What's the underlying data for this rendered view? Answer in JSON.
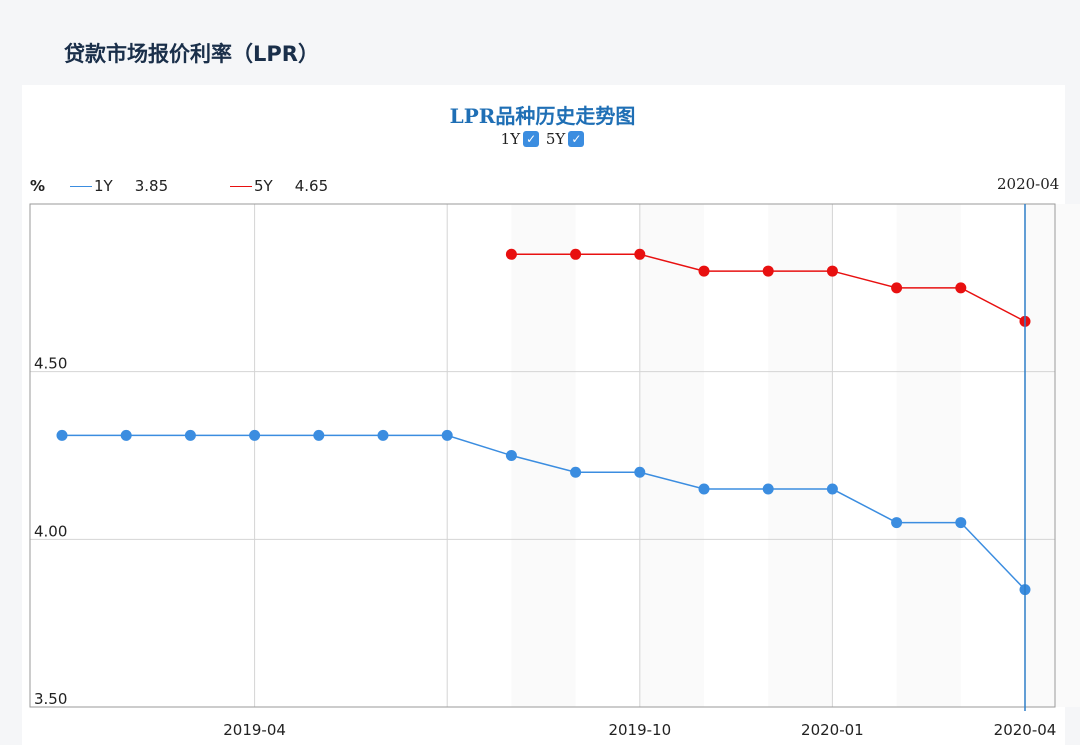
{
  "page": {
    "title": "贷款市场报价利率（LPR）"
  },
  "chart_data": {
    "type": "line",
    "title": "LPR品种历史走势图",
    "toggles": [
      {
        "label": "1Y",
        "checked": true
      },
      {
        "label": "5Y",
        "checked": true
      }
    ],
    "unit": "%",
    "x": [
      "2019-01",
      "2019-02",
      "2019-03",
      "2019-04",
      "2019-05",
      "2019-06",
      "2019-07",
      "2019-08",
      "2019-09",
      "2019-10",
      "2019-11",
      "2019-12",
      "2020-01",
      "2020-02",
      "2020-03",
      "2020-04"
    ],
    "x_tick_labels": [
      "2019-04",
      "2019-10",
      "2020-01",
      "2020-04"
    ],
    "y_tick_labels": [
      "4.50",
      "4.00",
      "3.50"
    ],
    "ylim": [
      3.5,
      5.0
    ],
    "series": [
      {
        "name": "1Y",
        "color": "#3b8de0",
        "values": [
          4.31,
          4.31,
          4.31,
          4.31,
          4.31,
          4.31,
          4.31,
          4.25,
          4.2,
          4.2,
          4.15,
          4.15,
          4.15,
          4.05,
          4.05,
          3.85
        ]
      },
      {
        "name": "5Y",
        "color": "#e81010",
        "values": [
          null,
          null,
          null,
          null,
          null,
          null,
          null,
          4.85,
          4.85,
          4.85,
          4.8,
          4.8,
          4.8,
          4.75,
          4.75,
          4.65
        ]
      }
    ],
    "legend_values": {
      "1Y": "3.85",
      "5Y": "4.65"
    },
    "hover": {
      "date": "2020-04",
      "index": 15
    },
    "grid": true
  }
}
